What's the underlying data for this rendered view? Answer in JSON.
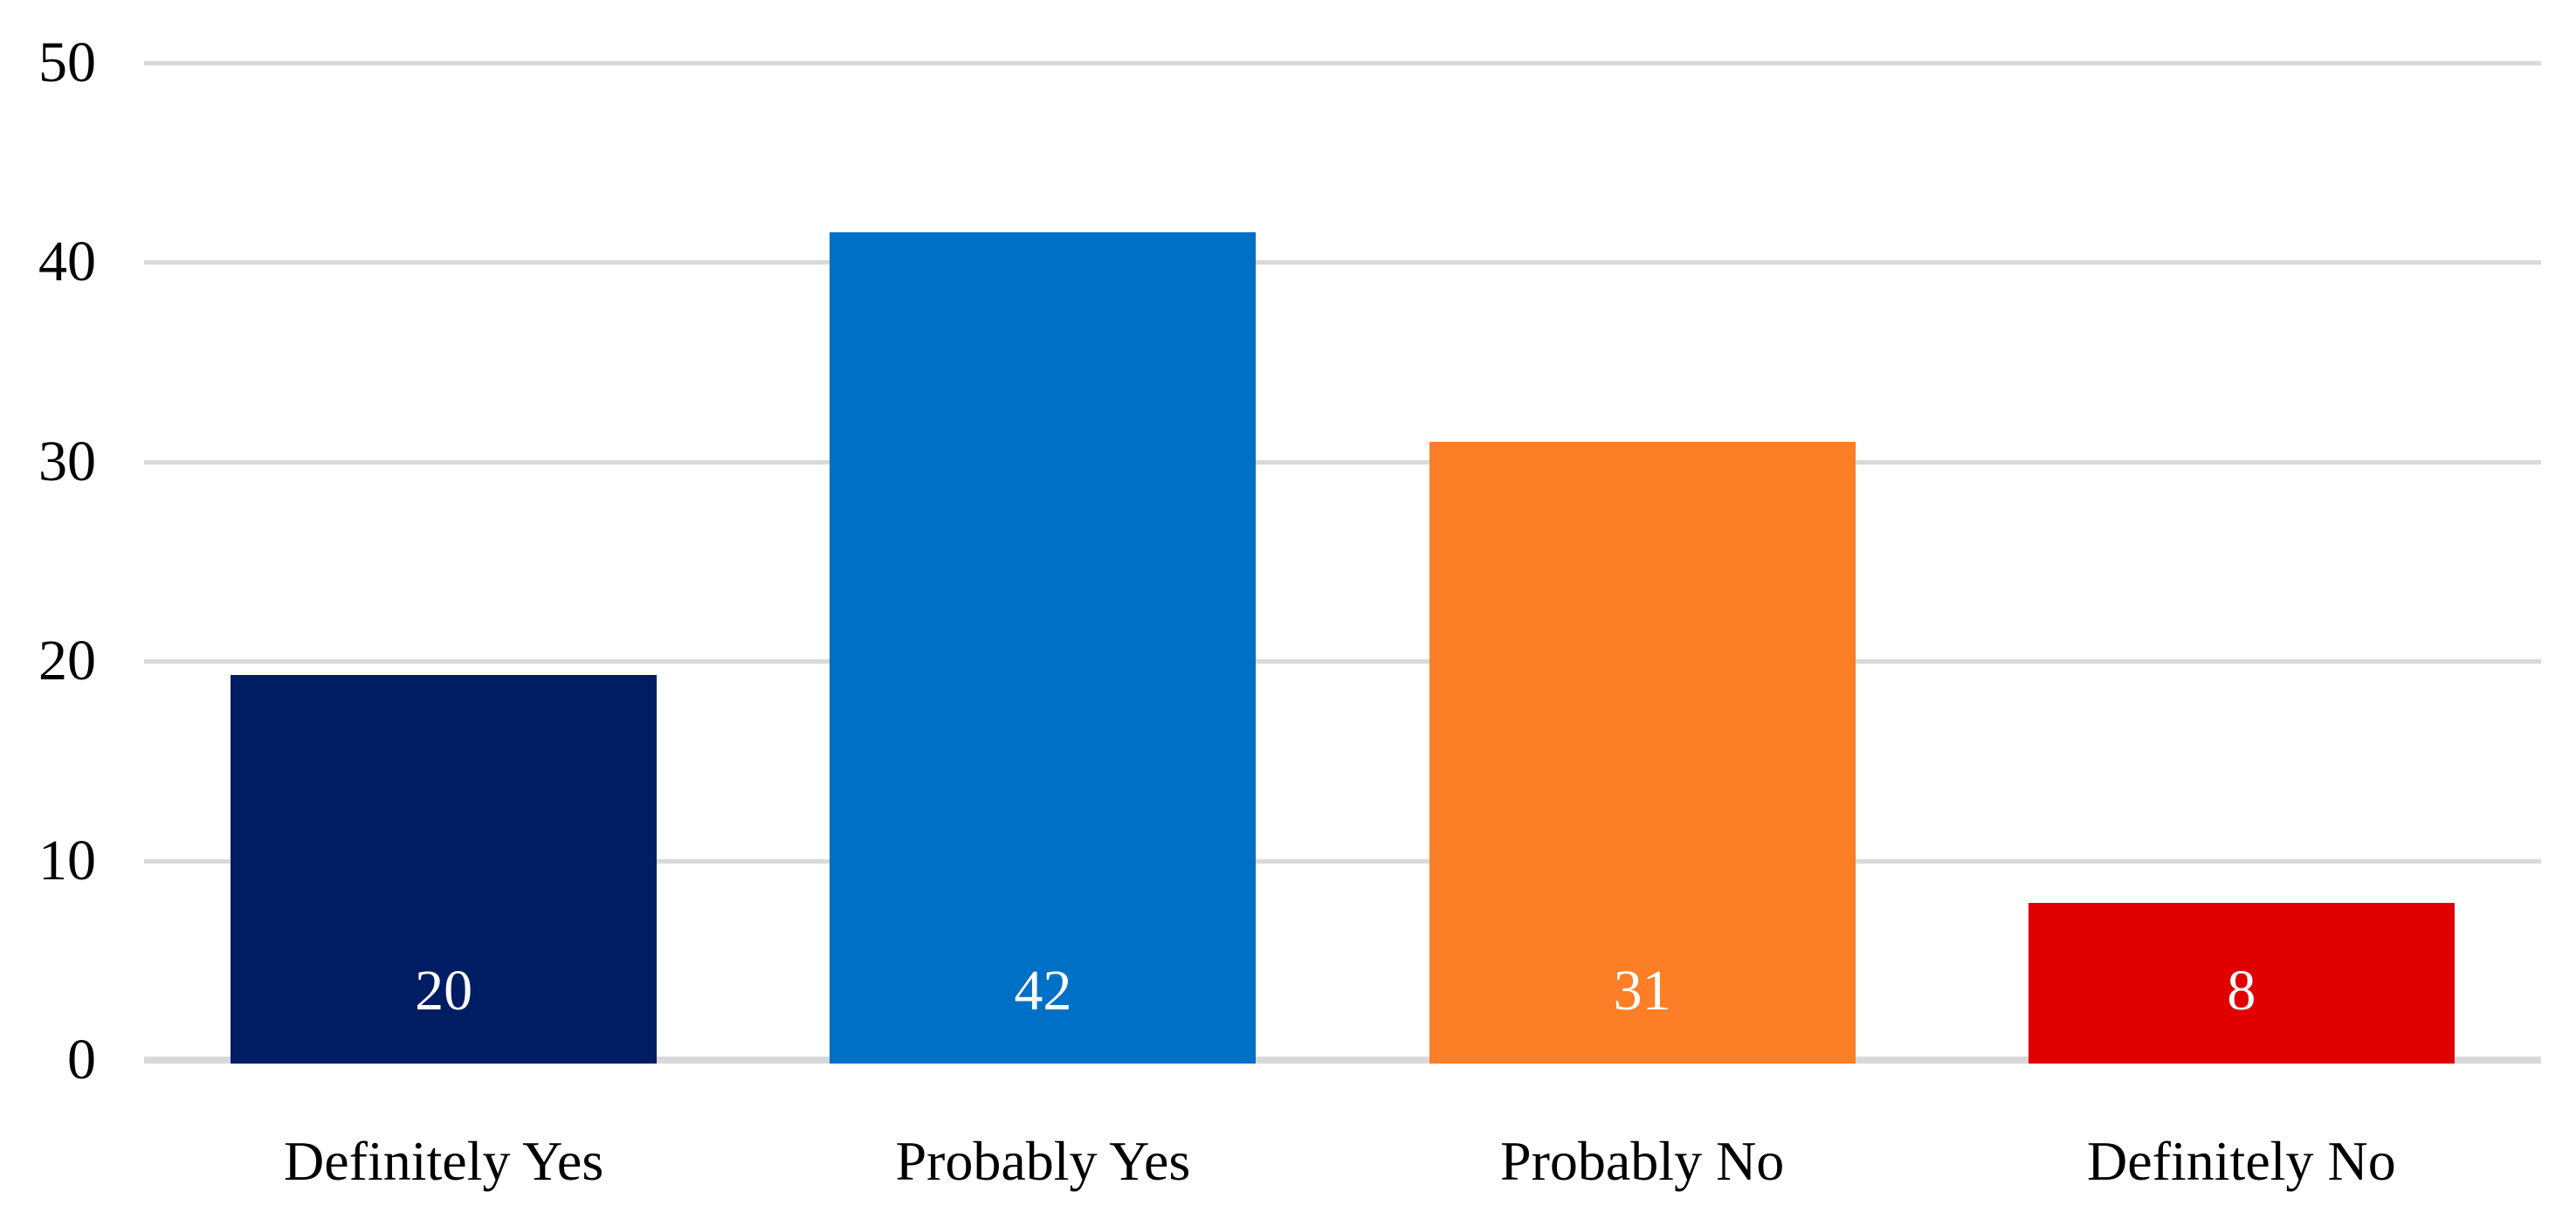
{
  "chart_data": {
    "type": "bar",
    "title": "",
    "xlabel": "",
    "ylabel": "",
    "categories": [
      "Definitely Yes",
      "Probably Yes",
      "Probably No",
      "Definitely No"
    ],
    "values": [
      20,
      42,
      31,
      8
    ],
    "data_labels": [
      "20",
      "42",
      "31",
      "8"
    ],
    "plot_values": [
      19.3,
      41.5,
      31.0,
      7.9
    ],
    "bar_colors": [
      "#001C63",
      "#0070C6",
      "#FC7E26",
      "#E00000"
    ],
    "ylim": [
      0,
      50
    ],
    "yticks": [
      0,
      10,
      20,
      30,
      40,
      50
    ],
    "grid": "horizontal",
    "gridline_color": "#D9D9D9",
    "axis_line_color": "#D9D9D9",
    "tick_label_color": "#000000",
    "category_label_color": "#000000",
    "data_label_color": "#FFFFFF",
    "legend": "none",
    "background": "#FFFFFF"
  }
}
